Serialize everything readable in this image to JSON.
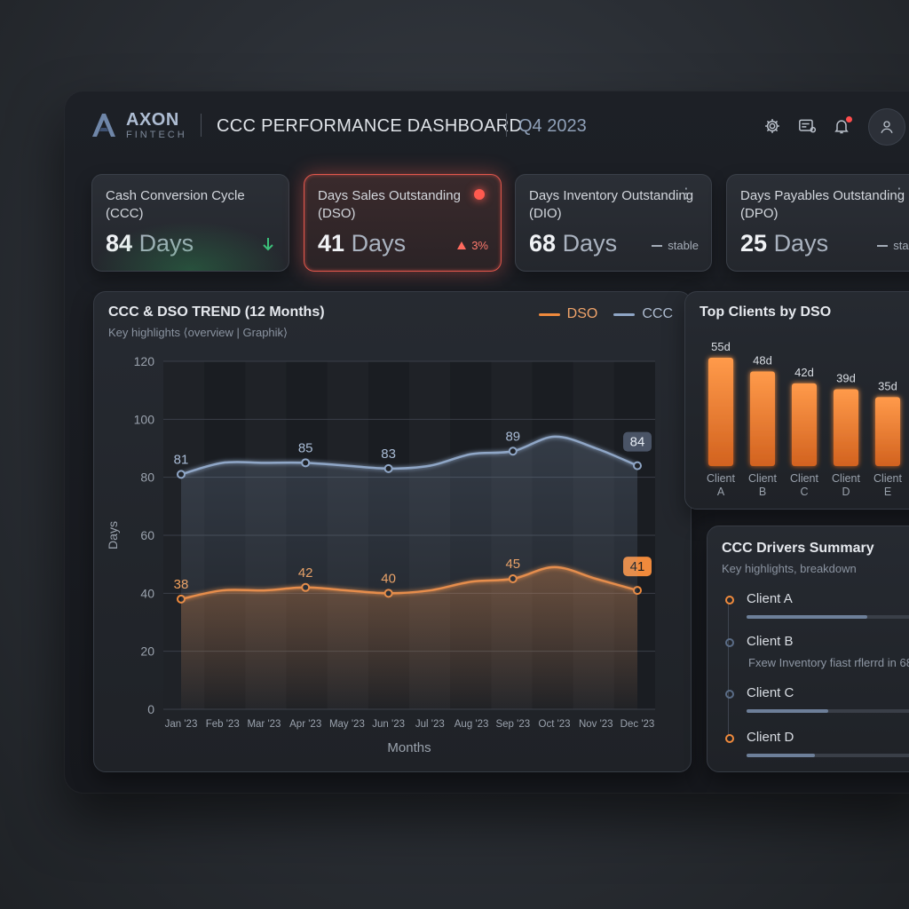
{
  "header": {
    "logo_name": "AXON",
    "logo_sub": "FINTECH",
    "title": "CCC PERFORMANCE DASHBOARD",
    "period": "Q4 2023"
  },
  "kpis": [
    {
      "label": "Cash Conversion Cycle (CCC)",
      "value": "84",
      "unit": "Days",
      "trend": "",
      "trend_icon": "arrow-down-icon",
      "status": "good"
    },
    {
      "label": "Days Sales Outstanding (DSO)",
      "value": "41",
      "unit": "Days",
      "trend": "3%",
      "trend_icon": "triangle-up-icon",
      "status": "alert"
    },
    {
      "label": "Days Inventory Outstanding (DIO)",
      "value": "68",
      "unit": "Days",
      "trend": "stable",
      "trend_icon": "dash-icon",
      "status": "neutral"
    },
    {
      "label": "Days Payables Outstanding (DPO)",
      "value": "25",
      "unit": "Days",
      "trend": "stable",
      "trend_icon": "dash-icon",
      "status": "neutral"
    }
  ],
  "colors": {
    "dso": "#f08a3c",
    "ccc": "#8fa6c6",
    "alert": "#ff5a4f",
    "good": "#3cc07a"
  },
  "trend_chart": {
    "title": "CCC & DSO TREND (12 Months)",
    "subtitle": "Key highlights ⟨overview | Graphik⟩",
    "legend": [
      "DSO",
      "CCC"
    ],
    "ylabel": "Days",
    "xlabel": "Months"
  },
  "chart_data": [
    {
      "type": "line",
      "title": "CCC & DSO TREND (12 Months)",
      "xlabel": "Months",
      "ylabel": "Days",
      "ylim": [
        0,
        120
      ],
      "yticks": [
        0,
        20,
        40,
        60,
        80,
        100,
        120
      ],
      "x": [
        "Jan '23",
        "Feb '23",
        "Mar '23",
        "Apr '23",
        "May '23",
        "Jun '23",
        "Jul '23",
        "Aug '23",
        "Sep '23",
        "Oct '23",
        "Nov '23",
        "Dec '23"
      ],
      "series": [
        {
          "name": "DSO",
          "values": [
            38,
            41,
            41,
            42,
            41,
            40,
            41,
            44,
            45,
            49,
            45,
            41
          ],
          "labeled": {
            "0": "38",
            "3": "42",
            "5": "40",
            "8": "45",
            "11": "41"
          }
        },
        {
          "name": "CCC",
          "values": [
            81,
            85,
            85,
            85,
            84,
            83,
            84,
            88,
            89,
            94,
            90,
            84
          ],
          "labeled": {
            "0": "81",
            "3": "85",
            "5": "83",
            "8": "89",
            "11": "84"
          }
        }
      ],
      "grid": true,
      "legend": "top-right"
    },
    {
      "type": "bar",
      "title": "Top Clients by DSO",
      "categories": [
        "Client A",
        "Client B",
        "Client C",
        "Client D",
        "Client E"
      ],
      "values": [
        55,
        48,
        42,
        39,
        35
      ],
      "value_labels": [
        "55d",
        "48d",
        "42d",
        "39d",
        "35d"
      ]
    }
  ],
  "top_clients": {
    "title": "Top Clients by DSO"
  },
  "drivers": {
    "title": "CCC Drivers Summary",
    "subtitle": "Key highlights, breakdown",
    "items": [
      {
        "label": "Client A",
        "progress": 0.62,
        "note": "",
        "dot": "#f08a3c"
      },
      {
        "label": "Client B",
        "progress": null,
        "note": "Fxew Inventory fiast rflerrd in 68",
        "dot": "#5a6c86"
      },
      {
        "label": "Client C",
        "progress": 0.42,
        "note": "",
        "dot": "#5a6c86"
      },
      {
        "label": "Client D",
        "progress": 0.35,
        "note": "",
        "dot": "#f08a3c"
      }
    ]
  }
}
